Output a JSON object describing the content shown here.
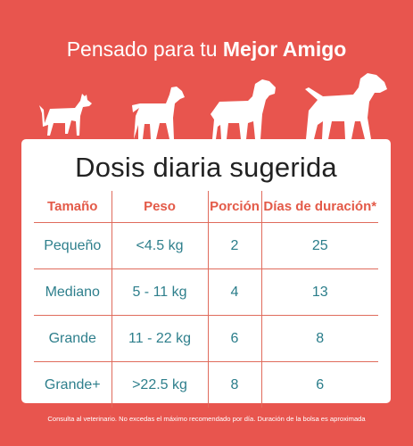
{
  "headline": {
    "prefix": "Pensado para tu ",
    "emphasis": "Mejor Amigo"
  },
  "icons": [
    "small-dog-icon",
    "medium-dog-icon",
    "large-dog-icon",
    "extra-large-dog-icon"
  ],
  "colors": {
    "background": "#e8554e",
    "header_text": "#e35a48",
    "cell_text": "#2e7f8c",
    "rule": "#e06b5c"
  },
  "table": {
    "title": "Dosis diaria sugerida",
    "headers": [
      "Tamaño",
      "Peso",
      "Porción",
      "Días de duración*"
    ],
    "rows": [
      [
        "Pequeño",
        "<4.5 kg",
        "2",
        "25"
      ],
      [
        "Mediano",
        "5 - 11 kg",
        "4",
        "13"
      ],
      [
        "Grande",
        "11 - 22 kg",
        "6",
        "8"
      ],
      [
        "Grande+",
        ">22.5 kg",
        "8",
        "6"
      ]
    ]
  },
  "footnote": "Consulta al veterinario. No excedas el máximo recomendado por día. Duración de la bolsa es aproximada"
}
